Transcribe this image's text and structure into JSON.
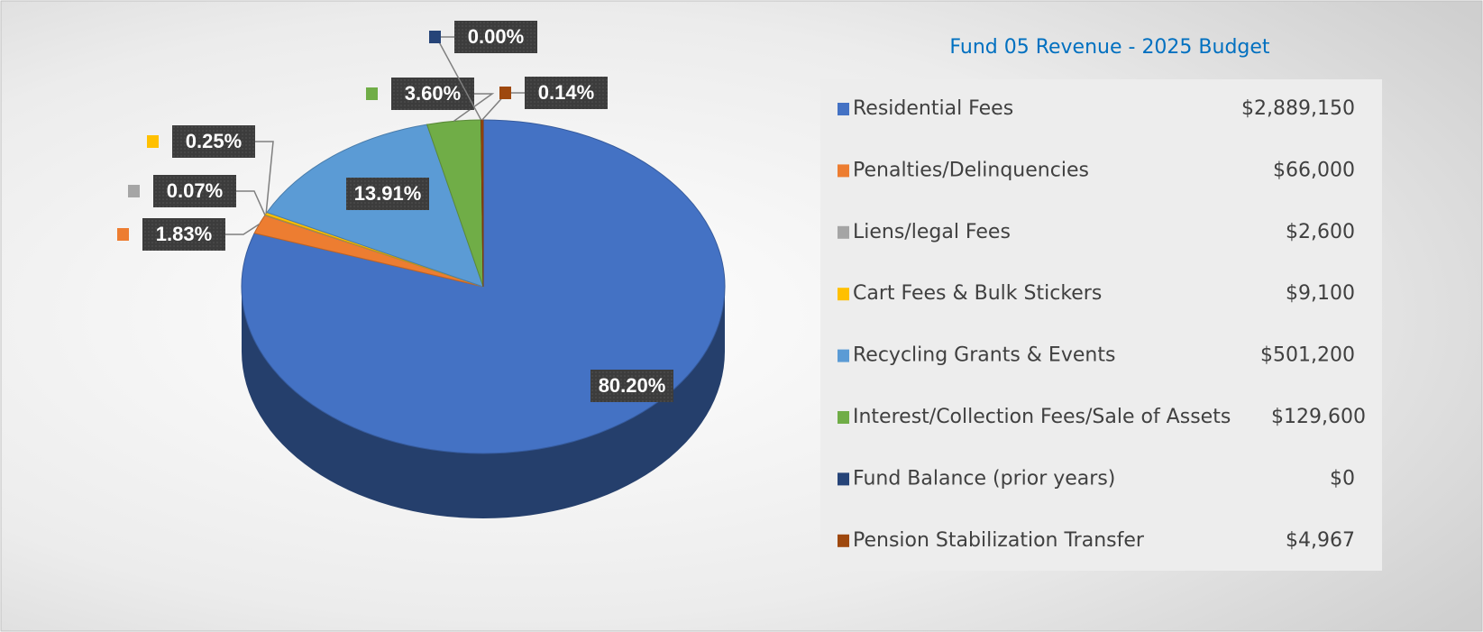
{
  "chart_data": {
    "type": "pie",
    "title": "Fund 05 Revenue - 2025 Budget",
    "categories": [
      "Residential Fees",
      "Penalties/Delinquencies",
      "Liens/legal Fees",
      "Cart Fees & Bulk Stickers",
      "Recycling Grants & Events",
      "Interest/Collection Fees/Sale of Assets",
      "Fund Balance (prior years)",
      "Pension Stabilization Transfer"
    ],
    "values": [
      80.2,
      1.83,
      0.07,
      0.25,
      13.91,
      3.6,
      0.0,
      0.14
    ],
    "value_labels": [
      "80.20%",
      "1.83%",
      "0.07%",
      "0.25%",
      "13.91%",
      "3.60%",
      "0.00%",
      "0.14%"
    ],
    "amounts": [
      "$2,889,150",
      "$66,000",
      "$2,600",
      "$9,100",
      "$501,200",
      "$129,600",
      "$0",
      "$4,967"
    ],
    "colors": [
      "#4472c4",
      "#ed7d31",
      "#a5a5a5",
      "#ffc000",
      "#5b9bd5",
      "#70ad47",
      "#264478",
      "#9e480e"
    ]
  }
}
